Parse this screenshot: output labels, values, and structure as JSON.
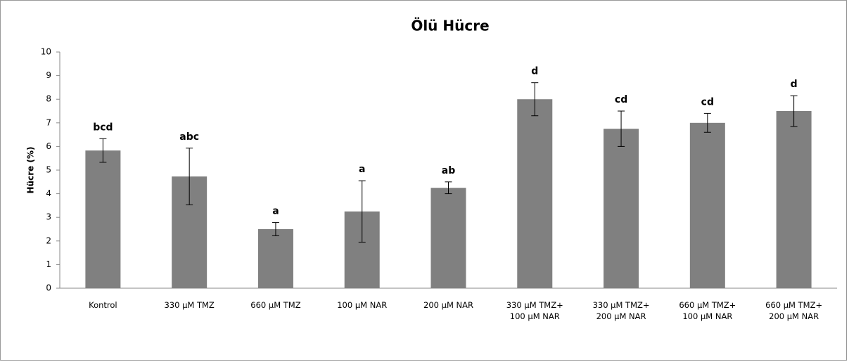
{
  "chart_data": {
    "type": "bar",
    "title": "Ölü Hücre",
    "y_label": "Hücre (%)",
    "categories": [
      "Kontrol",
      "330 µM TMZ",
      "660 µM TMZ",
      "100 µM NAR",
      "200 µM NAR",
      "330 µM TMZ+\n100 µM NAR",
      "330 µM TMZ+\n200 µM NAR",
      "660 µM TMZ+\n100 µM NAR",
      "660 µM TMZ+\n200 µM NAR"
    ],
    "values": [
      5.83,
      4.73,
      2.5,
      3.25,
      4.25,
      8.0,
      6.75,
      7.0,
      7.5
    ],
    "errors": [
      0.5,
      1.2,
      0.28,
      1.3,
      0.25,
      0.7,
      0.75,
      0.4,
      0.65
    ],
    "annotations": [
      "bcd",
      "abc",
      "a",
      "a",
      "ab",
      "d",
      "cd",
      "cd",
      "d"
    ],
    "color": "#808080",
    "ylim": [
      0,
      10
    ],
    "yticks": [
      0,
      1,
      2,
      3,
      4,
      5,
      6,
      7,
      8,
      9,
      10
    ],
    "grid": false
  }
}
